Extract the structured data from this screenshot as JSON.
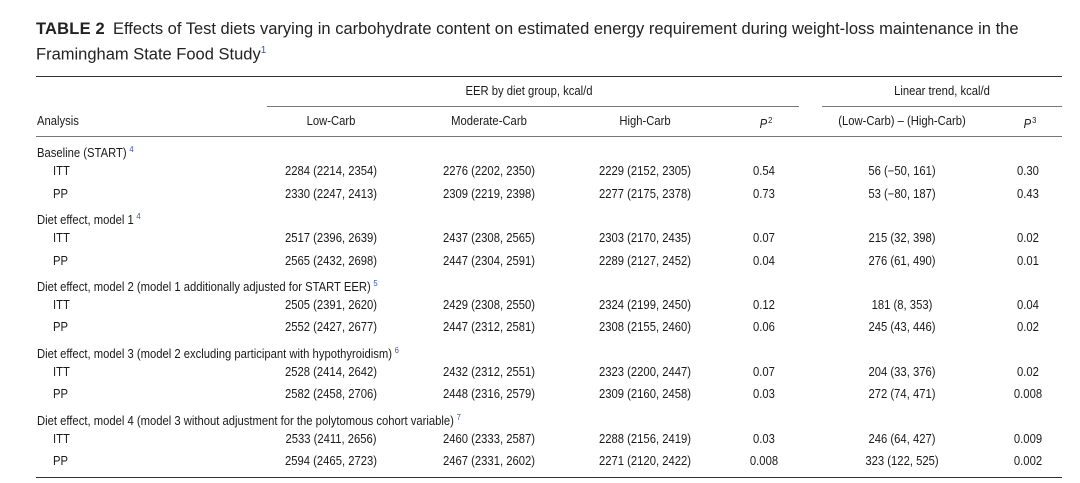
{
  "table": {
    "label": "TABLE 2",
    "caption": "Effects of Test diets varying in carbohydrate content on estimated energy requirement during weight-loss maintenance in the Framingham State Food Study",
    "caption_note": "1",
    "group_header_eer": "EER by diet group, kcal/d",
    "group_header_trend": "Linear trend, kcal/d",
    "columns": {
      "analysis": "Analysis",
      "low": "Low-Carb",
      "moderate": "Moderate-Carb",
      "high": "High-Carb",
      "p": "P",
      "p_note": "2",
      "diff": "(Low-Carb) – (High-Carb)",
      "p_trend": "P",
      "p_trend_note": "3"
    },
    "sections": [
      {
        "heading": "Baseline (START)",
        "note": "4",
        "rows": [
          {
            "label": "ITT",
            "low": "2284 (2214, 2354)",
            "moderate": "2276 (2202, 2350)",
            "high": "2229 (2152, 2305)",
            "p": "0.54",
            "diff": "56 (−50, 161)",
            "p_trend": "0.30"
          },
          {
            "label": "PP",
            "low": "2330 (2247, 2413)",
            "moderate": "2309 (2219, 2398)",
            "high": "2277 (2175, 2378)",
            "p": "0.73",
            "diff": "53 (−80, 187)",
            "p_trend": "0.43"
          }
        ]
      },
      {
        "heading": "Diet effect, model 1",
        "note": "4",
        "rows": [
          {
            "label": "ITT",
            "low": "2517 (2396, 2639)",
            "moderate": "2437 (2308, 2565)",
            "high": "2303 (2170, 2435)",
            "p": "0.07",
            "diff": "215 (32, 398)",
            "p_trend": "0.02"
          },
          {
            "label": "PP",
            "low": "2565 (2432, 2698)",
            "moderate": "2447 (2304, 2591)",
            "high": "2289 (2127, 2452)",
            "p": "0.04",
            "diff": "276 (61, 490)",
            "p_trend": "0.01"
          }
        ]
      },
      {
        "heading": "Diet effect, model 2 (model 1 additionally adjusted for START EER)",
        "note": "5",
        "rows": [
          {
            "label": "ITT",
            "low": "2505 (2391, 2620)",
            "moderate": "2429 (2308, 2550)",
            "high": "2324 (2199, 2450)",
            "p": "0.12",
            "diff": "181 (8, 353)",
            "p_trend": "0.04"
          },
          {
            "label": "PP",
            "low": "2552 (2427, 2677)",
            "moderate": "2447 (2312, 2581)",
            "high": "2308 (2155, 2460)",
            "p": "0.06",
            "diff": "245 (43, 446)",
            "p_trend": "0.02"
          }
        ]
      },
      {
        "heading": "Diet effect, model 3 (model 2 excluding participant with hypothyroidism)",
        "note": "6",
        "rows": [
          {
            "label": "ITT",
            "low": "2528 (2414, 2642)",
            "moderate": "2432 (2312, 2551)",
            "high": "2323 (2200, 2447)",
            "p": "0.07",
            "diff": "204 (33, 376)",
            "p_trend": "0.02"
          },
          {
            "label": "PP",
            "low": "2582 (2458, 2706)",
            "moderate": "2448 (2316, 2579)",
            "high": "2309 (2160, 2458)",
            "p": "0.03",
            "diff": "272 (74, 471)",
            "p_trend": "0.008"
          }
        ]
      },
      {
        "heading": "Diet effect, model 4 (model 3 without adjustment for the polytomous cohort variable)",
        "note": "7",
        "rows": [
          {
            "label": "ITT",
            "low": "2533 (2411, 2656)",
            "moderate": "2460 (2333, 2587)",
            "high": "2288 (2156, 2419)",
            "p": "0.03",
            "diff": "246 (64, 427)",
            "p_trend": "0.009"
          },
          {
            "label": "PP",
            "low": "2594 (2465, 2723)",
            "moderate": "2467 (2331, 2602)",
            "high": "2271 (2120, 2422)",
            "p": "0.008",
            "diff": "323 (122, 525)",
            "p_trend": "0.002"
          }
        ]
      }
    ]
  }
}
